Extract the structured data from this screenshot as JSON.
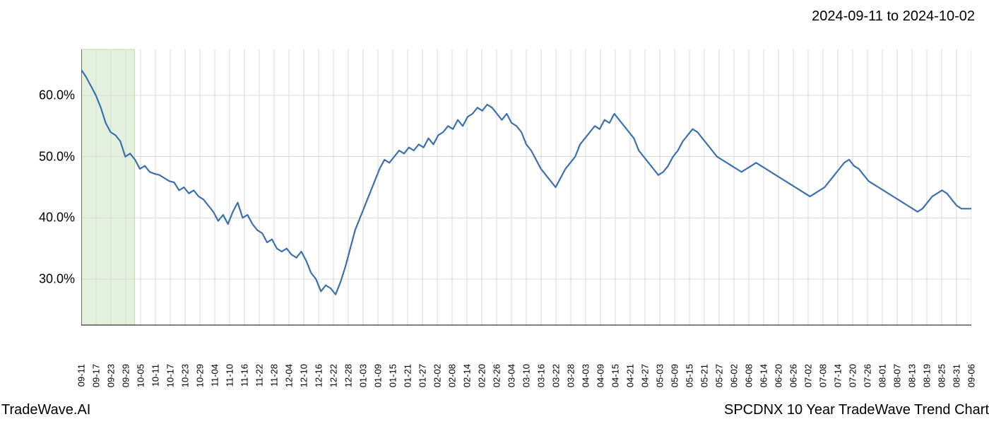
{
  "header": {
    "date_range": "2024-09-11 to 2024-10-02"
  },
  "footer": {
    "branding": "TradeWave.AI",
    "caption": "SPCDNX 10 Year TradeWave Trend Chart"
  },
  "chart": {
    "type": "line",
    "background_color": "#ffffff",
    "plot_background_color": "#ffffff",
    "grid_color": "#d9d9d9",
    "axis_line_color": "#000000",
    "line_color": "#3a6fb0",
    "line_width": 2.2,
    "highlight_band": {
      "fill": "#e4f0de",
      "stroke": "#c2d8b4",
      "x_start_index": 0,
      "x_end_index": 3
    },
    "tick_label_fontsize": 13,
    "y_axis": {
      "format": "percent",
      "min": 22.5,
      "max": 67.5,
      "ticks": [
        30.0,
        40.0,
        50.0,
        60.0
      ],
      "tick_labels": [
        "30.0%",
        "40.0%",
        "50.0%",
        "60.0%"
      ]
    },
    "x_axis": {
      "tick_labels": [
        "09-11",
        "09-17",
        "09-23",
        "09-29",
        "10-05",
        "10-11",
        "10-17",
        "10-23",
        "10-29",
        "11-04",
        "11-10",
        "11-16",
        "11-22",
        "11-28",
        "12-04",
        "12-10",
        "12-16",
        "12-22",
        "12-28",
        "01-03",
        "01-09",
        "01-15",
        "01-21",
        "01-27",
        "02-02",
        "02-08",
        "02-14",
        "02-20",
        "02-26",
        "03-04",
        "03-10",
        "03-16",
        "03-22",
        "03-28",
        "04-03",
        "04-09",
        "04-15",
        "04-21",
        "04-27",
        "05-03",
        "05-09",
        "05-15",
        "05-21",
        "05-27",
        "06-02",
        "06-08",
        "06-14",
        "06-20",
        "06-26",
        "07-02",
        "07-08",
        "07-14",
        "07-20",
        "07-26",
        "08-01",
        "08-07",
        "08-13",
        "08-19",
        "08-25",
        "08-31",
        "09-06"
      ]
    },
    "series": {
      "values": [
        64.2,
        63.0,
        61.5,
        60.0,
        58.0,
        55.5,
        54.0,
        53.5,
        52.5,
        50.0,
        50.5,
        49.5,
        48.0,
        48.5,
        47.5,
        47.2,
        47.0,
        46.5,
        46.0,
        45.8,
        44.5,
        45.0,
        44.0,
        44.5,
        43.5,
        43.0,
        42.0,
        41.0,
        39.5,
        40.5,
        39.0,
        41.0,
        42.5,
        40.0,
        40.5,
        39.0,
        38.0,
        37.5,
        36.0,
        36.5,
        35.0,
        34.5,
        35.0,
        34.0,
        33.5,
        34.5,
        33.0,
        31.0,
        30.0,
        28.0,
        29.0,
        28.5,
        27.5,
        29.5,
        32.0,
        35.0,
        38.0,
        40.0,
        42.0,
        44.0,
        46.0,
        48.0,
        49.5,
        49.0,
        50.0,
        51.0,
        50.5,
        51.5,
        51.0,
        52.0,
        51.5,
        53.0,
        52.0,
        53.5,
        54.0,
        55.0,
        54.5,
        56.0,
        55.0,
        56.5,
        57.0,
        58.0,
        57.5,
        58.5,
        58.0,
        57.0,
        56.0,
        57.0,
        55.5,
        55.0,
        54.0,
        52.0,
        51.0,
        49.5,
        48.0,
        47.0,
        46.0,
        45.0,
        46.5,
        48.0,
        49.0,
        50.0,
        52.0,
        53.0,
        54.0,
        55.0,
        54.5,
        56.0,
        55.5,
        57.0,
        56.0,
        55.0,
        54.0,
        53.0,
        51.0,
        50.0,
        49.0,
        48.0,
        47.0,
        47.5,
        48.5,
        50.0,
        51.0,
        52.5,
        53.5,
        54.5,
        54.0,
        53.0,
        52.0,
        51.0,
        50.0,
        49.5,
        49.0,
        48.5,
        48.0,
        47.5,
        48.0,
        48.5,
        49.0,
        48.5,
        48.0,
        47.5,
        47.0,
        46.5,
        46.0,
        45.5,
        45.0,
        44.5,
        44.0,
        43.5,
        44.0,
        44.5,
        45.0,
        46.0,
        47.0,
        48.0,
        49.0,
        49.5,
        48.5,
        48.0,
        47.0,
        46.0,
        45.5,
        45.0,
        44.5,
        44.0,
        43.5,
        43.0,
        42.5,
        42.0,
        41.5,
        41.0,
        41.5,
        42.5,
        43.5,
        44.0,
        44.5,
        44.0,
        43.0,
        42.0,
        41.5,
        41.5,
        41.5
      ]
    }
  }
}
